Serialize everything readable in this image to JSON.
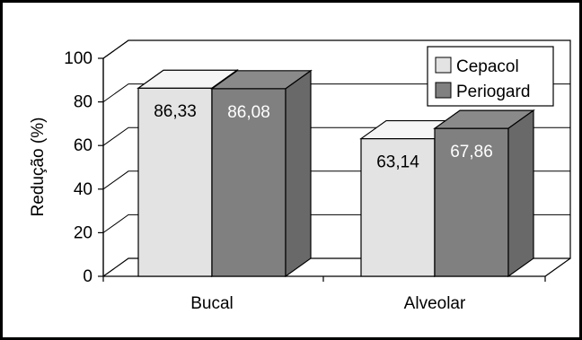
{
  "chart_data": {
    "type": "bar",
    "title": "",
    "xlabel": "",
    "ylabel": "Redução (%)",
    "ylim": [
      0,
      100
    ],
    "yticks": [
      "0",
      "20",
      "40",
      "60",
      "80",
      "100"
    ],
    "grid": true,
    "legend_position": "top-right",
    "categories": [
      "Bucal",
      "Alveolar"
    ],
    "series": [
      {
        "name": "Cepacol",
        "color": "#e3e3e3",
        "values": [
          86.33,
          63.14
        ],
        "labels": [
          "86,33",
          "63,14"
        ]
      },
      {
        "name": "Periogard",
        "color": "#808080",
        "values": [
          86.08,
          67.86
        ],
        "labels": [
          "86,08",
          "67,86"
        ]
      }
    ]
  }
}
